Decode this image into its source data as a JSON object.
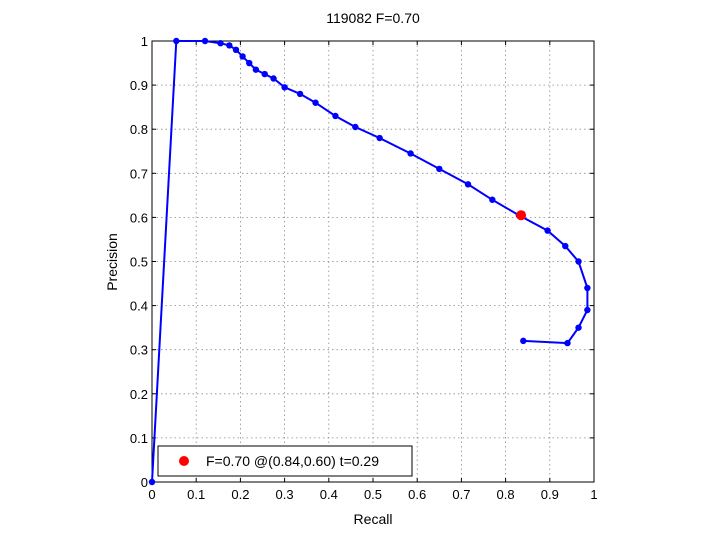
{
  "chart_data": {
    "type": "line",
    "title": "119082 F=0.70",
    "xlabel": "Recall",
    "ylabel": "Precision",
    "xlim": [
      0,
      1
    ],
    "ylim": [
      0,
      1
    ],
    "xticks": [
      0,
      0.1,
      0.2,
      0.3,
      0.4,
      0.5,
      0.6,
      0.7,
      0.8,
      0.9,
      1
    ],
    "yticks": [
      0,
      0.1,
      0.2,
      0.3,
      0.4,
      0.5,
      0.6,
      0.7,
      0.8,
      0.9,
      1
    ],
    "xtick_labels": [
      "0",
      "0.1",
      "0.2",
      "0.3",
      "0.4",
      "0.5",
      "0.6",
      "0.7",
      "0.8",
      "0.9",
      "1"
    ],
    "ytick_labels": [
      "0",
      "0.1",
      "0.2",
      "0.3",
      "0.4",
      "0.5",
      "0.6",
      "0.7",
      "0.8",
      "0.9",
      "1"
    ],
    "grid": true,
    "legend_position": "bottom-left",
    "series": [
      {
        "color": "#0000ff",
        "marker": "dot",
        "x": [
          0.84,
          0.94,
          0.965,
          0.985,
          0.985,
          0.965,
          0.935,
          0.895,
          0.83,
          0.77,
          0.715,
          0.65,
          0.585,
          0.515,
          0.46,
          0.415,
          0.37,
          0.335,
          0.3,
          0.275,
          0.255,
          0.235,
          0.22,
          0.205,
          0.19,
          0.175,
          0.155,
          0.12,
          0.055,
          0.0
        ],
        "y": [
          0.32,
          0.315,
          0.35,
          0.39,
          0.44,
          0.5,
          0.535,
          0.57,
          0.605,
          0.64,
          0.675,
          0.71,
          0.745,
          0.78,
          0.805,
          0.83,
          0.86,
          0.88,
          0.895,
          0.915,
          0.925,
          0.935,
          0.95,
          0.965,
          0.98,
          0.99,
          0.995,
          1.0,
          1.0,
          0.0
        ]
      }
    ],
    "best_point": {
      "x": 0.835,
      "y": 0.605,
      "color": "#ff0000"
    },
    "legend": {
      "label": "F=0.70 @(0.84,0.60) t=0.29",
      "color": "#ff0000"
    }
  }
}
